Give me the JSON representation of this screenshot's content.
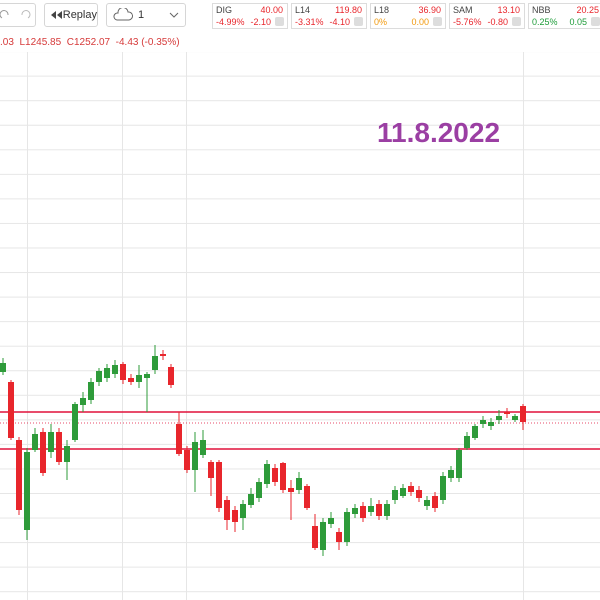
{
  "toolbar": {
    "replay": "Replay",
    "interval": "1",
    "tickers": [
      {
        "symbol": "DIG",
        "price": "40.00",
        "change_pct": "-4.99%",
        "change": "-2.10",
        "color": "#e8262c"
      },
      {
        "symbol": "L14",
        "price": "119.80",
        "change_pct": "-3.31%",
        "change": "-4.10",
        "color": "#e8262c"
      },
      {
        "symbol": "L18",
        "price": "36.90",
        "change_pct": "0%",
        "change": "0.00",
        "color": "#f29a0f"
      },
      {
        "symbol": "SAM",
        "price": "13.10",
        "change_pct": "-5.76%",
        "change": "-0.80",
        "color": "#e8262c"
      },
      {
        "symbol": "NBB",
        "price": "20.25",
        "change_pct": "0.25%",
        "change": "0.05",
        "color": "#1f9c3a"
      }
    ],
    "ohlc_line": ".03  L1245.85  C1252.07  -4.43 (-0.35%)"
  },
  "chart_data": {
    "type": "candlestick",
    "annotation": "11.8.2022",
    "up_color": "#2e9b3a",
    "down_color": "#e8262c",
    "level_color": "#e0103a",
    "ylim": [
      1207,
      1342
    ],
    "levels": [
      1254,
      1244.75
    ],
    "price_line": 1251.25,
    "open": [
      1264,
      1261.5,
      1247,
      1224.5,
      1244.5,
      1249,
      1244,
      1249,
      1241.5,
      1247,
      1255.75,
      1257,
      1261.5,
      1262.5,
      1263.5,
      1266,
      1262.5,
      1261.5,
      1262.5,
      1264.5,
      1268.5,
      1265.25,
      1251,
      1244.5,
      1239.5,
      1243.25,
      1241.5,
      1241.5,
      1232,
      1229.5,
      1227.5,
      1230.75,
      1232.5,
      1236,
      1240,
      1241.25,
      1235,
      1234.5,
      1235.5,
      1225.5,
      1219.5,
      1226,
      1224,
      1221.5,
      1228.5,
      1230.5,
      1229,
      1231,
      1228,
      1232,
      1233,
      1235.5,
      1234.5,
      1230.5,
      1233,
      1232,
      1237.5,
      1237.5,
      1245,
      1247.5,
      1251,
      1250.5,
      1252,
      1254,
      1252,
      1255.5
    ],
    "high": [
      1267.5,
      1262,
      1247.75,
      1245,
      1250,
      1250,
      1251,
      1250,
      1247,
      1256.5,
      1259,
      1262.5,
      1265,
      1266,
      1267,
      1266.5,
      1263.5,
      1265.75,
      1264,
      1270.75,
      1269.5,
      1266,
      1254,
      1245.5,
      1249,
      1249.5,
      1242,
      1242,
      1233,
      1230.5,
      1232,
      1235,
      1237.5,
      1242,
      1241,
      1241.5,
      1237,
      1239,
      1236,
      1228.5,
      1227.5,
      1229,
      1225,
      1230,
      1231,
      1231.5,
      1232.5,
      1232,
      1232,
      1235.5,
      1236,
      1236.5,
      1235.5,
      1233,
      1234,
      1239,
      1240.5,
      1245,
      1249,
      1251,
      1253,
      1252.5,
      1254.5,
      1255,
      1253.5,
      1256
    ],
    "low": [
      1263.25,
      1247,
      1228.25,
      1222,
      1244,
      1238,
      1242.5,
      1240.75,
      1237,
      1246.5,
      1254,
      1256,
      1260.5,
      1261.5,
      1262.5,
      1261,
      1260.75,
      1260,
      1254,
      1263.5,
      1267,
      1260,
      1243,
      1238.75,
      1234,
      1242.5,
      1233,
      1229,
      1224.5,
      1224,
      1224.5,
      1230,
      1231.5,
      1235,
      1235.5,
      1233.75,
      1227,
      1233.5,
      1229.5,
      1219.5,
      1218,
      1225,
      1219.5,
      1220.5,
      1227.5,
      1226.5,
      1228,
      1227,
      1227,
      1231,
      1232.5,
      1233,
      1231.5,
      1229.5,
      1229,
      1231,
      1236.5,
      1236.5,
      1244.5,
      1247,
      1250,
      1249.5,
      1251,
      1252.5,
      1251.5,
      1249.5
    ],
    "close": [
      1266.25,
      1247.5,
      1229.5,
      1244,
      1248.5,
      1238.75,
      1249,
      1241.5,
      1245.5,
      1256,
      1257.5,
      1261.5,
      1264.25,
      1265,
      1265.75,
      1262,
      1261.5,
      1263.25,
      1263.5,
      1268,
      1268,
      1260.75,
      1243.5,
      1239.5,
      1246.5,
      1247,
      1237.5,
      1230,
      1227,
      1226.5,
      1231,
      1233.5,
      1236.5,
      1241,
      1236.5,
      1234.5,
      1234,
      1237.5,
      1230,
      1220,
      1226.5,
      1227.5,
      1221.5,
      1229,
      1230,
      1227.5,
      1230.5,
      1228,
      1231,
      1234.5,
      1235,
      1234,
      1232.5,
      1232,
      1230,
      1238,
      1239.5,
      1244.5,
      1248,
      1250.5,
      1252,
      1251.5,
      1253,
      1253.5,
      1253,
      1251.5
    ]
  }
}
